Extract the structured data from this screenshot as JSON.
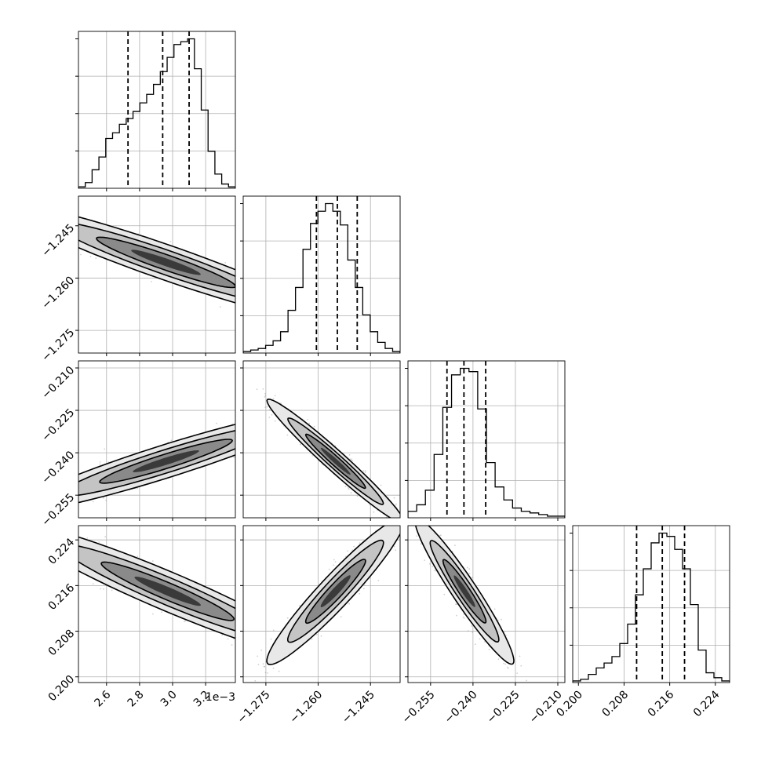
{
  "chart_data": {
    "type": "corner",
    "title": "",
    "parameter_labels": [
      "",
      "",
      "",
      ""
    ],
    "offset_text": "1e−3",
    "grid": true,
    "colors": {
      "line": "#000000",
      "scatter": "#9a9a9a",
      "grid": "#b0b0b0"
    },
    "parameters": [
      {
        "range": [
          0.00243,
          0.00338
        ],
        "ticks": [
          0.0026,
          0.0028,
          0.003,
          0.0032
        ],
        "tick_labels": [
          "2.6",
          "2.8",
          "3.0",
          "3.2"
        ],
        "quantiles": [
          0.00273,
          0.00294,
          0.0031
        ],
        "hist_rel": [
          0.01,
          0.04,
          0.13,
          0.22,
          0.35,
          0.39,
          0.45,
          0.49,
          0.54,
          0.6,
          0.66,
          0.73,
          0.82,
          0.92,
          1.01,
          1.03,
          1.05,
          0.84,
          0.55,
          0.26,
          0.1,
          0.03,
          0.01
        ]
      },
      {
        "range": [
          -1.2815,
          -1.2365
        ],
        "ticks": [
          -1.275,
          -1.26,
          -1.245
        ],
        "tick_labels": [
          "−1.275",
          "−1.260",
          "−1.245"
        ],
        "quantiles": [
          -1.2605,
          -1.2545,
          -1.2488
        ],
        "hist_rel": [
          0.01,
          0.02,
          0.03,
          0.05,
          0.08,
          0.14,
          0.28,
          0.43,
          0.68,
          0.85,
          0.93,
          0.98,
          0.93,
          0.84,
          0.61,
          0.43,
          0.25,
          0.14,
          0.07,
          0.03,
          0.01
        ]
      },
      {
        "range": [
          -0.263,
          -0.2075
        ],
        "ticks": [
          -0.255,
          -0.24,
          -0.225,
          -0.21
        ],
        "tick_labels": [
          "−0.255",
          "−0.240",
          "−0.225",
          "−0.210"
        ],
        "quantiles": [
          -0.2492,
          -0.2432,
          -0.2355
        ],
        "hist_rel": [
          0.04,
          0.08,
          0.17,
          0.39,
          0.68,
          0.88,
          0.92,
          0.9,
          0.67,
          0.34,
          0.19,
          0.11,
          0.06,
          0.04,
          0.03,
          0.02,
          0.01,
          0.01
        ]
      },
      {
        "range": [
          0.199,
          0.2265
        ],
        "ticks": [
          0.2,
          0.208,
          0.216,
          0.224
        ],
        "tick_labels": [
          "0.200",
          "0.208",
          "0.216",
          "0.224"
        ],
        "quantiles": [
          0.2102,
          0.2147,
          0.2186
        ],
        "hist_rel": [
          0.01,
          0.02,
          0.05,
          0.09,
          0.12,
          0.16,
          0.24,
          0.36,
          0.54,
          0.7,
          0.86,
          0.92,
          0.9,
          0.82,
          0.7,
          0.48,
          0.2,
          0.06,
          0.03,
          0.01
        ]
      }
    ],
    "pairs": [
      {
        "row": 1,
        "col": 0,
        "centroid": [
          0.00296,
          -1.2555
        ],
        "axis1": [
          0.00042,
          -0.007
        ],
        "axis2": [
          3e-05,
          0.0018
        ]
      },
      {
        "row": 2,
        "col": 0,
        "centroid": [
          0.00296,
          -0.243
        ],
        "axis1": [
          0.0004,
          0.0075
        ],
        "axis2": [
          3.5e-05,
          -0.002
        ]
      },
      {
        "row": 3,
        "col": 0,
        "centroid": [
          0.00297,
          0.215
        ],
        "axis1": [
          0.0004,
          -0.005
        ],
        "axis2": [
          4e-05,
          0.0011
        ]
      },
      {
        "row": 2,
        "col": 1,
        "centroid": [
          -1.255,
          -0.243
        ],
        "axis1": [
          0.0085,
          -0.0095
        ],
        "axis2": [
          0.001,
          0.001
        ]
      },
      {
        "row": 3,
        "col": 1,
        "centroid": [
          -1.255,
          0.215
        ],
        "axis1": [
          0.0085,
          0.0055
        ],
        "axis2": [
          -0.0012,
          0.001
        ]
      },
      {
        "row": 3,
        "col": 2,
        "centroid": [
          -0.243,
          0.215
        ],
        "axis1": [
          0.0075,
          -0.0055
        ],
        "axis2": [
          0.0012,
          0.0008
        ]
      }
    ]
  }
}
